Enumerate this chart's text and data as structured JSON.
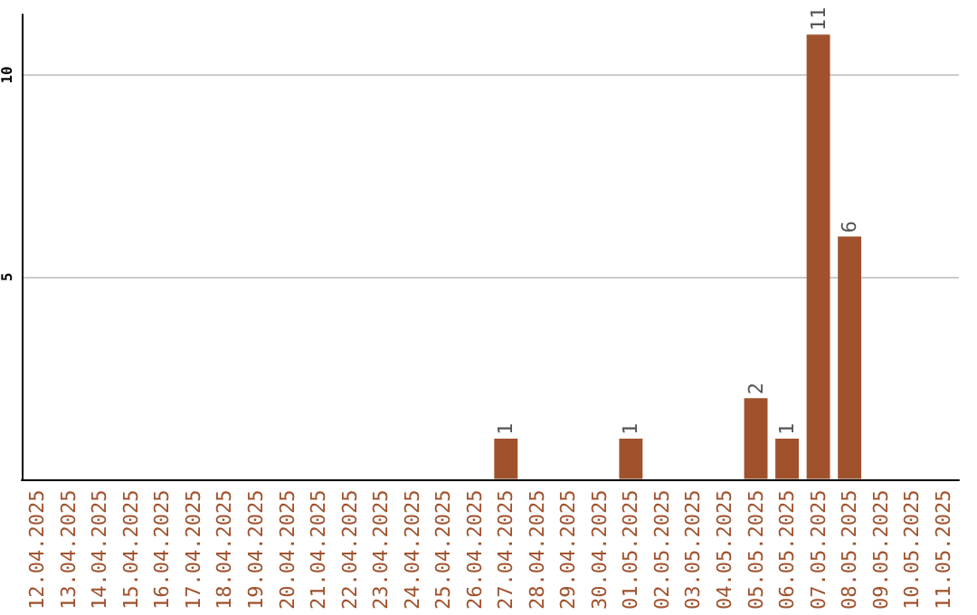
{
  "chart_data": {
    "type": "bar",
    "categories": [
      "12.04.2025",
      "13.04.2025",
      "14.04.2025",
      "15.04.2025",
      "16.04.2025",
      "17.04.2025",
      "18.04.2025",
      "19.04.2025",
      "20.04.2025",
      "21.04.2025",
      "22.04.2025",
      "23.04.2025",
      "24.04.2025",
      "25.04.2025",
      "26.04.2025",
      "27.04.2025",
      "28.04.2025",
      "29.04.2025",
      "30.04.2025",
      "01.05.2025",
      "02.05.2025",
      "03.05.2025",
      "04.05.2025",
      "05.05.2025",
      "06.05.2025",
      "07.05.2025",
      "08.05.2025",
      "09.05.2025",
      "10.05.2025",
      "11.05.2025"
    ],
    "values": [
      0,
      0,
      0,
      0,
      0,
      0,
      0,
      0,
      0,
      0,
      0,
      0,
      0,
      0,
      0,
      1,
      0,
      0,
      0,
      1,
      0,
      0,
      0,
      2,
      1,
      11,
      6,
      0,
      0,
      0
    ],
    "value_labels": [
      null,
      null,
      null,
      null,
      null,
      null,
      null,
      null,
      null,
      null,
      null,
      null,
      null,
      null,
      null,
      "1",
      null,
      null,
      null,
      "1",
      null,
      null,
      null,
      "2",
      "1",
      "11",
      "6",
      null,
      null,
      null
    ],
    "color": "#a0522d",
    "ylim": [
      0,
      11.5
    ],
    "yticks": [
      5,
      10
    ],
    "grid": "y"
  }
}
